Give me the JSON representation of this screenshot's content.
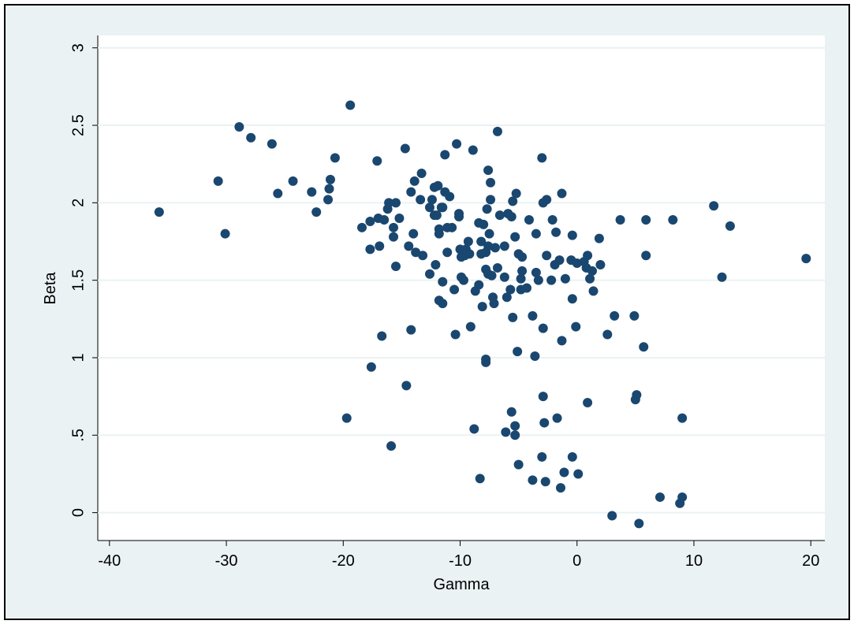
{
  "chart_data": {
    "type": "scatter",
    "xlabel": "Gamma",
    "ylabel": "Beta",
    "x": [
      -35.75,
      -30.7,
      -30.1,
      -28.9,
      -27.9,
      -26.1,
      -25.6,
      -24.3,
      -22.7,
      -22.3,
      -21.3,
      -21.2,
      -21.1,
      -20.7,
      -19.4,
      -19.7,
      -18.4,
      -17.7,
      -17.7,
      -17.6,
      -17.1,
      -17.0,
      -16.9,
      -16.7,
      -16.5,
      -16.2,
      -16.1,
      -15.9,
      -15.7,
      -15.7,
      -15.5,
      -15.5,
      -15.2,
      -14.7,
      -14.6,
      -14.4,
      -14.2,
      -14.2,
      -14.0,
      -13.9,
      -13.8,
      -13.4,
      -13.3,
      -13.2,
      -12.6,
      -12.6,
      -12.4,
      -12.2,
      -12.2,
      -12.1,
      -12.0,
      -11.9,
      -11.8,
      -11.8,
      -11.8,
      -11.6,
      -11.5,
      -11.5,
      -11.5,
      -11.3,
      -11.3,
      -11.1,
      -11.1,
      -10.9,
      -10.7,
      -10.5,
      -10.4,
      -10.3,
      -10.1,
      -10.1,
      -10.0,
      -9.9,
      -9.9,
      -9.7,
      -9.6,
      -9.5,
      -9.3,
      -9.2,
      -9.1,
      -8.9,
      -8.8,
      -8.7,
      -8.4,
      -8.4,
      -8.3,
      -8.2,
      -8.2,
      -8.1,
      -8.0,
      -7.8,
      -7.8,
      -7.8,
      -7.8,
      -7.7,
      -7.6,
      -7.6,
      -7.6,
      -7.5,
      -7.4,
      -7.4,
      -7.3,
      -7.2,
      -7.1,
      -7.0,
      -6.8,
      -6.8,
      -6.6,
      -6.2,
      -6.2,
      -6.1,
      -6.0,
      -5.9,
      -5.7,
      -5.6,
      -5.6,
      -5.5,
      -5.5,
      -5.3,
      -5.3,
      -5.3,
      -5.2,
      -5.1,
      -5.0,
      -5.0,
      -4.8,
      -4.8,
      -4.7,
      -4.7,
      -4.3,
      -4.1,
      -3.8,
      -3.8,
      -3.6,
      -3.5,
      -3.5,
      -3.3,
      -3.0,
      -3.0,
      -2.9,
      -2.9,
      -2.9,
      -2.8,
      -2.7,
      -2.6,
      -2.6,
      -2.2,
      -2.1,
      -1.9,
      -1.8,
      -1.7,
      -1.5,
      -1.4,
      -1.3,
      -1.3,
      -1.1,
      -1.0,
      -0.5,
      -0.4,
      -0.4,
      -0.4,
      -0.1,
      0.0,
      0.1,
      0.6,
      0.8,
      0.9,
      0.9,
      1.1,
      1.3,
      1.4,
      1.9,
      2.0,
      2.6,
      3.0,
      3.2,
      3.7,
      4.9,
      5.0,
      5.1,
      5.3,
      5.7,
      5.9,
      5.9,
      7.1,
      8.2,
      8.8,
      9.0,
      9.0,
      11.7,
      12.4,
      13.1,
      19.6
    ],
    "y": [
      1.94,
      2.14,
      1.8,
      2.49,
      2.42,
      2.38,
      2.06,
      2.14,
      2.07,
      1.94,
      2.02,
      2.09,
      2.15,
      2.29,
      2.63,
      0.61,
      1.84,
      1.88,
      1.7,
      0.94,
      2.27,
      1.9,
      1.72,
      1.14,
      1.89,
      1.96,
      2.0,
      0.43,
      1.84,
      1.78,
      2.0,
      1.59,
      1.9,
      2.35,
      0.82,
      1.72,
      2.07,
      1.18,
      1.8,
      2.14,
      1.68,
      2.02,
      2.19,
      1.66,
      1.54,
      1.97,
      2.02,
      2.1,
      1.92,
      1.6,
      1.92,
      2.11,
      1.83,
      1.37,
      1.8,
      1.97,
      1.35,
      1.97,
      1.49,
      2.07,
      2.31,
      1.84,
      1.68,
      2.04,
      1.84,
      1.44,
      1.15,
      2.38,
      1.91,
      1.93,
      1.7,
      1.52,
      1.65,
      1.5,
      1.66,
      1.7,
      1.75,
      1.67,
      1.2,
      2.34,
      0.54,
      1.43,
      1.87,
      1.47,
      0.22,
      1.75,
      1.67,
      1.33,
      1.86,
      0.99,
      0.97,
      1.68,
      1.57,
      1.96,
      2.21,
      1.54,
      1.72,
      1.8,
      2.13,
      2.02,
      1.53,
      1.39,
      1.35,
      1.71,
      2.46,
      1.58,
      1.92,
      1.72,
      1.52,
      0.52,
      1.39,
      1.93,
      1.44,
      1.91,
      0.65,
      1.26,
      2.01,
      0.56,
      0.5,
      1.78,
      2.06,
      1.04,
      1.67,
      0.31,
      1.44,
      1.51,
      1.56,
      1.65,
      1.45,
      1.89,
      1.27,
      0.21,
      1.01,
      1.55,
      1.8,
      1.5,
      0.36,
      2.29,
      2.0,
      1.19,
      0.75,
      0.58,
      0.2,
      2.02,
      1.66,
      1.5,
      1.89,
      1.6,
      1.81,
      0.61,
      1.63,
      0.16,
      2.06,
      1.11,
      0.26,
      1.51,
      1.63,
      1.79,
      1.38,
      0.36,
      1.2,
      1.61,
      0.25,
      1.62,
      1.58,
      1.66,
      0.71,
      1.51,
      1.56,
      1.43,
      1.77,
      1.6,
      1.15,
      -0.02,
      1.27,
      1.89,
      1.27,
      0.73,
      0.76,
      -0.07,
      1.07,
      1.66,
      1.89,
      0.1,
      1.89,
      0.06,
      0.1,
      0.61,
      1.98,
      1.52,
      1.85,
      1.64
    ],
    "color": "#1a476f",
    "xlim": [
      -41,
      21.2
    ],
    "ylim": [
      -0.18,
      3.08
    ],
    "xticks": [
      -40,
      -30,
      -20,
      -10,
      0,
      10,
      20
    ],
    "yticks": [
      0,
      {
        "value": 0.5,
        "label": ".5"
      },
      1,
      1.5,
      2,
      2.5,
      3
    ],
    "grid": true
  }
}
